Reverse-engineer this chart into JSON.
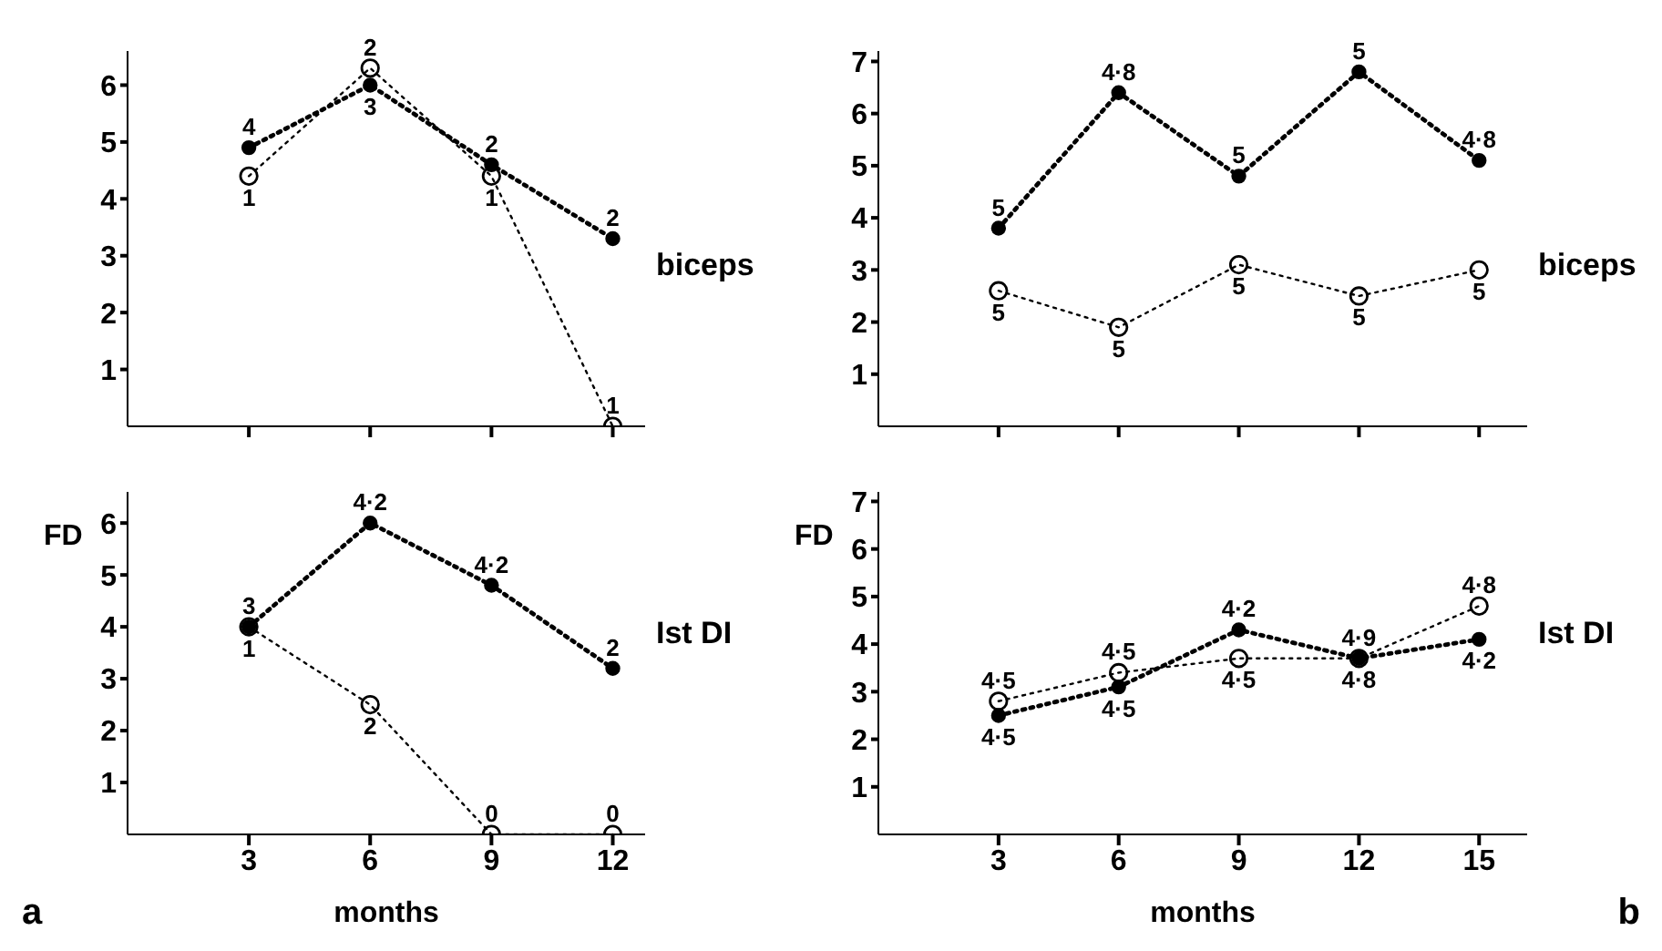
{
  "chart_data": [
    {
      "type": "line",
      "x": [
        3,
        6,
        9,
        12
      ],
      "xlim": [
        0,
        12.8
      ],
      "xticks": [
        3,
        6,
        9,
        12
      ],
      "ylim": [
        0,
        6.6
      ],
      "yticks": [
        1,
        2,
        3,
        4,
        5,
        6
      ],
      "tick_labels": "y",
      "grid": false,
      "legend": false,
      "series": [
        {
          "color": "#000000",
          "marker": "circle",
          "line_style": "dotted",
          "values": [
            4.9,
            6.0,
            4.6,
            3.3
          ]
        },
        {
          "color": "#000000",
          "marker": "circle",
          "line_style": "dotted",
          "values": [
            4.4,
            6.3,
            4.4,
            0
          ]
        }
      ],
      "annotations": [
        {
          "text": "4",
          "x": 3,
          "y": 4.9
        },
        {
          "text": "1",
          "x": 3,
          "y": 4.4
        },
        {
          "text": "2",
          "x": 6,
          "y": 6.3
        },
        {
          "text": "3",
          "x": 6,
          "y": 6.0
        },
        {
          "text": "2",
          "x": 9,
          "y": 4.6
        },
        {
          "text": "1",
          "x": 9,
          "y": 4.4
        },
        {
          "text": "2",
          "x": 12,
          "y": 3.3
        },
        {
          "text": "1",
          "x": 12,
          "y": 0
        },
        "biceps"
      ]
    },
    {
      "type": "line",
      "x": [
        3,
        6,
        9,
        12,
        15
      ],
      "xlim": [
        0,
        16.2
      ],
      "xticks": [
        3,
        6,
        9,
        12,
        15
      ],
      "ylim": [
        0,
        7.2
      ],
      "yticks": [
        1,
        2,
        3,
        4,
        5,
        6,
        7
      ],
      "tick_labels": "y",
      "grid": false,
      "legend": false,
      "series": [
        {
          "color": "#000000",
          "marker": "circle",
          "line_style": "dotted",
          "values": [
            3.8,
            6.4,
            4.8,
            6.8,
            5.1
          ]
        },
        {
          "color": "#000000",
          "marker": "circle",
          "line_style": "dotted",
          "values": [
            2.6,
            1.9,
            3.1,
            2.5,
            3.0
          ]
        }
      ],
      "annotations": [
        {
          "text": "5",
          "x": 3,
          "y": 3.8
        },
        {
          "text": "4·8",
          "x": 6,
          "y": 6.4
        },
        {
          "text": "5",
          "x": 9,
          "y": 4.8
        },
        {
          "text": "5",
          "x": 12,
          "y": 6.8
        },
        {
          "text": "4·8",
          "x": 15,
          "y": 5.1
        },
        {
          "text": "5",
          "x": 3,
          "y": 2.6
        },
        {
          "text": "5",
          "x": 6,
          "y": 1.9
        },
        {
          "text": "5",
          "x": 9,
          "y": 3.1
        },
        {
          "text": "5",
          "x": 12,
          "y": 2.5
        },
        {
          "text": "5",
          "x": 15,
          "y": 3.0
        },
        "biceps"
      ]
    },
    {
      "type": "line",
      "xlabel": "months",
      "ylabel": "FD",
      "x": [
        3,
        6,
        9,
        12
      ],
      "xlim": [
        0,
        12.8
      ],
      "xticks": [
        3,
        6,
        9,
        12
      ],
      "ylim": [
        0,
        6.6
      ],
      "yticks": [
        1,
        2,
        3,
        4,
        5,
        6
      ],
      "grid": false,
      "legend": false,
      "series": [
        {
          "color": "#000000",
          "marker": "circle",
          "line_style": "dotted",
          "values": [
            4.0,
            6.0,
            4.8,
            3.2
          ]
        },
        {
          "color": "#000000",
          "marker": "circle",
          "line_style": "dotted",
          "values": [
            4.0,
            2.5,
            0,
            0
          ]
        }
      ],
      "annotations": [
        {
          "text": "3",
          "x": 3,
          "y": 4.0
        },
        {
          "text": "1",
          "x": 3,
          "y": 4.0
        },
        {
          "text": "4·2",
          "x": 6,
          "y": 6.0
        },
        {
          "text": "2",
          "x": 6,
          "y": 2.5
        },
        {
          "text": "4·2",
          "x": 9,
          "y": 4.8
        },
        {
          "text": "0",
          "x": 9,
          "y": 0
        },
        {
          "text": "2",
          "x": 12,
          "y": 3.2
        },
        {
          "text": "0",
          "x": 12,
          "y": 0
        },
        "Ist DI",
        "a"
      ]
    },
    {
      "type": "line",
      "xlabel": "months",
      "ylabel": "FD",
      "x": [
        3,
        6,
        9,
        12,
        15
      ],
      "xlim": [
        0,
        16.2
      ],
      "xticks": [
        3,
        6,
        9,
        12,
        15
      ],
      "ylim": [
        0,
        7.2
      ],
      "yticks": [
        1,
        2,
        3,
        4,
        5,
        6,
        7
      ],
      "grid": false,
      "legend": false,
      "series": [
        {
          "color": "#000000",
          "marker": "circle",
          "line_style": "dotted",
          "values": [
            2.5,
            3.1,
            4.3,
            3.7,
            4.1
          ]
        },
        {
          "color": "#000000",
          "marker": "circle",
          "line_style": "dotted",
          "values": [
            2.8,
            3.4,
            3.7,
            3.7,
            4.8
          ]
        }
      ],
      "annotations": [
        {
          "text": "4·5",
          "x": 3,
          "y": 2.8
        },
        {
          "text": "4·5",
          "x": 3,
          "y": 2.5
        },
        {
          "text": "4·5",
          "x": 6,
          "y": 3.4
        },
        {
          "text": "4·5",
          "x": 6,
          "y": 3.1
        },
        {
          "text": "4·2",
          "x": 9,
          "y": 4.3
        },
        {
          "text": "4·5",
          "x": 9,
          "y": 3.7
        },
        {
          "text": "4·9",
          "x": 12,
          "y": 3.7
        },
        {
          "text": "4·8",
          "x": 12,
          "y": 3.7
        },
        {
          "text": "4·8",
          "x": 15,
          "y": 4.8
        },
        {
          "text": "4·2",
          "x": 15,
          "y": 4.1
        },
        "Ist DI",
        "b"
      ]
    }
  ]
}
